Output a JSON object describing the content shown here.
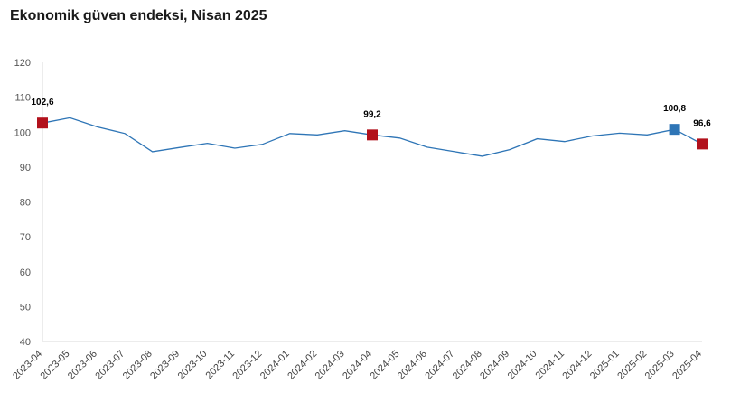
{
  "title": "Ekonomik güven endeksi, Nisan 2025",
  "chart_data": {
    "type": "line",
    "title": "Ekonomik güven endeksi, Nisan 2025",
    "xlabel": "",
    "ylabel": "",
    "ylim": [
      40,
      120
    ],
    "yticks": [
      40,
      50,
      60,
      70,
      80,
      90,
      100,
      110,
      120
    ],
    "grid": false,
    "categories": [
      "2023-04",
      "2023-05",
      "2023-06",
      "2023-07",
      "2023-08",
      "2023-09",
      "2023-10",
      "2023-11",
      "2023-12",
      "2024-01",
      "2024-02",
      "2024-03",
      "2024-04",
      "2024-05",
      "2024-06",
      "2024-07",
      "2024-08",
      "2024-09",
      "2024-10",
      "2024-11",
      "2024-12",
      "2025-01",
      "2025-02",
      "2025-03",
      "2025-04"
    ],
    "values": [
      102.6,
      104.1,
      101.5,
      99.6,
      94.4,
      95.6,
      96.8,
      95.4,
      96.5,
      99.6,
      99.2,
      100.4,
      99.2,
      98.3,
      95.7,
      94.4,
      93.1,
      95.0,
      98.1,
      97.3,
      98.9,
      99.7,
      99.2,
      100.8,
      96.6
    ],
    "line_color": "#2e75b6",
    "highlights": [
      {
        "category": "2023-04",
        "value": 102.6,
        "label": "102,6",
        "color": "#b2111c"
      },
      {
        "category": "2024-04",
        "value": 99.2,
        "label": "99,2",
        "color": "#b2111c"
      },
      {
        "category": "2025-03",
        "value": 100.8,
        "label": "100,8",
        "color": "#2e75b6"
      },
      {
        "category": "2025-04",
        "value": 96.6,
        "label": "96,6",
        "color": "#b2111c"
      }
    ]
  }
}
